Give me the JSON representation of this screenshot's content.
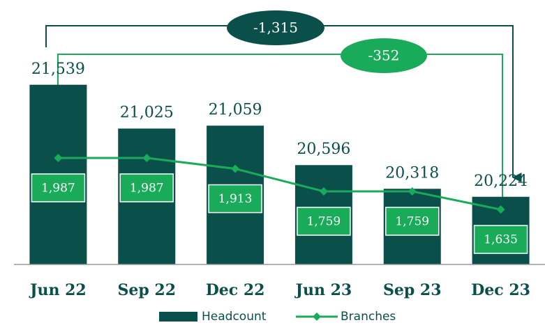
{
  "chart_data": {
    "type": "bar",
    "categories": [
      "Jun 22",
      "Sep 22",
      "Dec 22",
      "Jun 23",
      "Sep 23",
      "Dec 23"
    ],
    "series": [
      {
        "name": "Headcount",
        "type": "bar",
        "color": "#0b4f4a",
        "values": [
          21539,
          21025,
          21059,
          20596,
          20318,
          20224
        ],
        "value_labels": [
          "21,539",
          "21,025",
          "21,059",
          "20,596",
          "20,318",
          "20,224"
        ]
      },
      {
        "name": "Branches",
        "type": "line",
        "axis": "y2",
        "color": "#1aab5a",
        "values": [
          1987,
          1987,
          1913,
          1759,
          1759,
          1635
        ],
        "value_labels": [
          "1,987",
          "1,987",
          "1,913",
          "1,759",
          "1,759",
          "1,635"
        ]
      }
    ],
    "ylim": [
      19430,
      22370
    ],
    "y2lim": [
      1260,
      2970
    ],
    "annotations": [
      "-1,315",
      "-352"
    ]
  }
}
